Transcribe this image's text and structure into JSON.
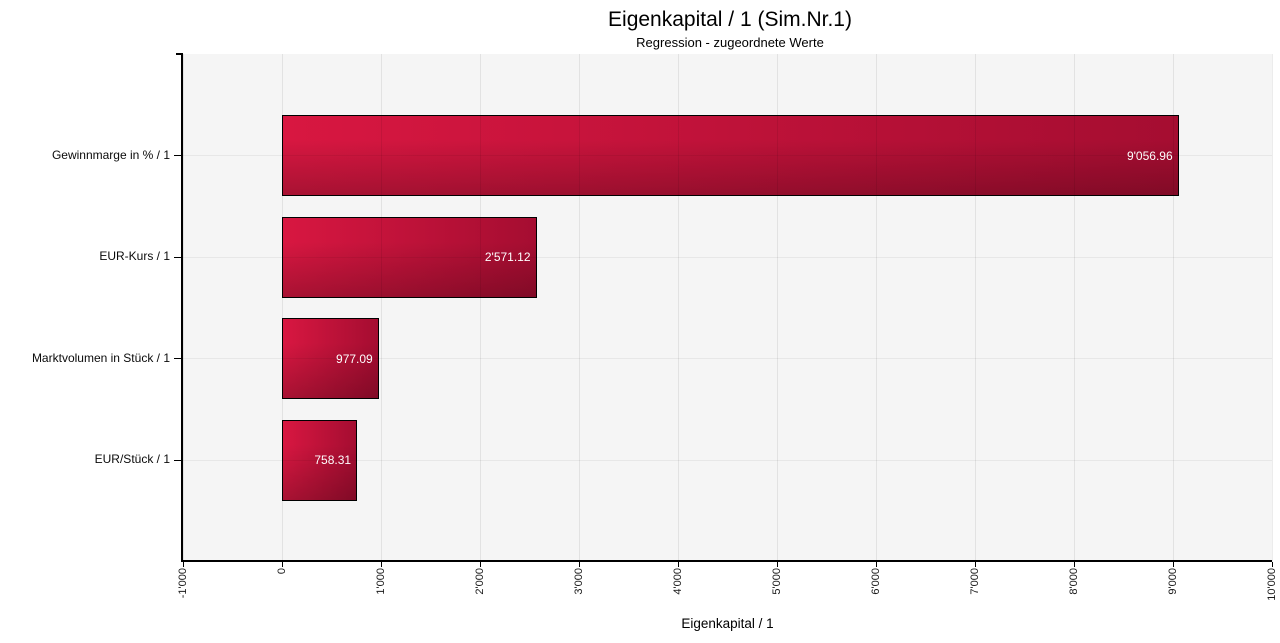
{
  "chart_data": {
    "type": "bar",
    "orientation": "horizontal",
    "title": "Eigenkapital / 1 (Sim.Nr.1)",
    "subtitle": "Regression - zugeordnete Werte",
    "xlabel": "Eigenkapital / 1",
    "categories": [
      "Gewinnmarge in % / 1",
      "EUR-Kurs / 1",
      "Marktvolumen in Stück / 1",
      "EUR/Stück / 1"
    ],
    "values": [
      9056.96,
      2571.12,
      977.09,
      758.31
    ],
    "value_labels": [
      "9'056.96",
      "2'571.12",
      "977.09",
      "758.31"
    ],
    "xlim": [
      -1000,
      10000
    ],
    "xticks": [
      -1000,
      0,
      1000,
      2000,
      3000,
      4000,
      5000,
      6000,
      7000,
      8000,
      9000,
      10000
    ],
    "xtick_labels": [
      "-1'000",
      "0",
      "1'000",
      "2'000",
      "3'000",
      "4'000",
      "5'000",
      "6'000",
      "7'000",
      "8'000",
      "9'000",
      "10'000"
    ],
    "grid": true,
    "legend": false,
    "colors": {
      "bar_gradient_light": "#d81741",
      "bar_gradient_dark": "#a50d31",
      "bar_border": "#000000",
      "plot_background": "#f5f5f5",
      "value_label_text": "#ffffff",
      "axis": "#000000"
    }
  }
}
